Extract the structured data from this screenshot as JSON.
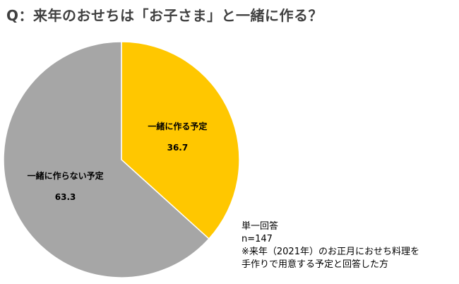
{
  "title": "Q：来年のおせちは「お子さま」と一緒に作る？",
  "chart_data": {
    "type": "pie",
    "start_angle_deg": 0,
    "direction": "clockwise",
    "slices": [
      {
        "label": "一緒に作る予定",
        "value": 36.7,
        "value_text": "36.7",
        "color": "#FFC700"
      },
      {
        "label": "一緒に作らない予定",
        "value": 63.3,
        "value_text": "63.3",
        "color": "#A6A6A6"
      }
    ],
    "label_color": "#000000"
  },
  "notes": {
    "answer_type": "単一回答",
    "sample_size": "n=147",
    "footnote_line1": "※来年（2021年）のお正月におせち料理を",
    "footnote_line2": "手作りで用意する予定と回答した方"
  }
}
